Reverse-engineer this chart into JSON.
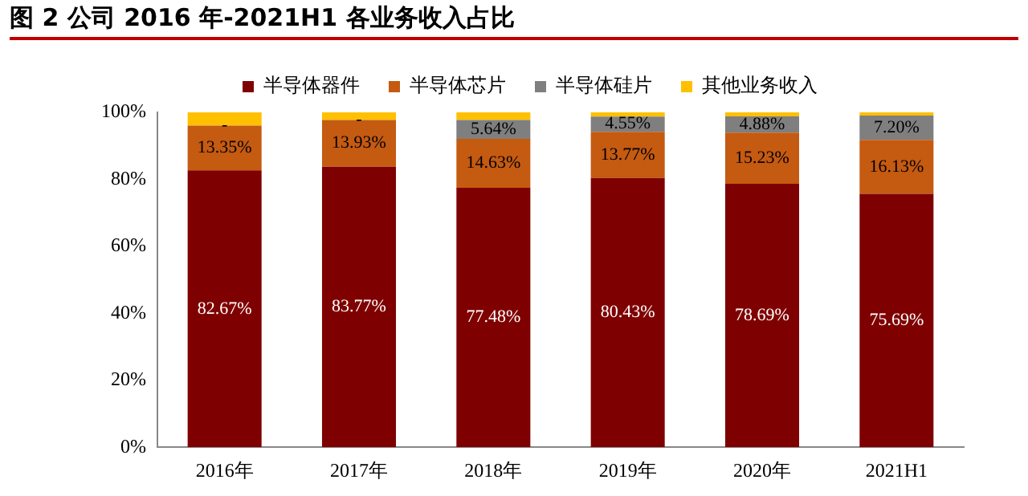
{
  "chart_data": {
    "type": "bar",
    "stacked": true,
    "title": "图 2 公司 2016 年-2021H1 各业务收入占比",
    "categories": [
      "2016年",
      "2017年",
      "2018年",
      "2019年",
      "2020年",
      "2021H1"
    ],
    "series": [
      {
        "name": "半导体器件",
        "color": "#7f0000",
        "values": [
          82.67,
          83.77,
          77.48,
          80.43,
          78.69,
          75.69
        ],
        "value_labels": [
          "82.67%",
          "83.77%",
          "77.48%",
          "80.43%",
          "78.69%",
          "75.69%"
        ]
      },
      {
        "name": "半导体芯片",
        "color": "#c55a11",
        "values": [
          13.35,
          13.93,
          14.63,
          13.77,
          15.23,
          16.13
        ],
        "value_labels": [
          "13.35%",
          "13.93%",
          "14.63%",
          "13.77%",
          "15.23%",
          "16.13%"
        ]
      },
      {
        "name": "半导体硅片",
        "color": "#7f7f7f",
        "values": [
          0,
          0,
          5.64,
          4.55,
          4.88,
          7.2
        ],
        "value_labels": [
          "-",
          "-",
          "5.64%",
          "4.55%",
          "4.88%",
          "7.20%"
        ]
      },
      {
        "name": "其他业务收入",
        "color": "#ffc000",
        "values": [
          3.98,
          2.3,
          2.25,
          1.25,
          1.2,
          0.98
        ],
        "value_labels": [
          null,
          null,
          null,
          null,
          null,
          null
        ]
      }
    ],
    "ylim": [
      0,
      100
    ],
    "yticks": [
      {
        "value": 0,
        "label": "0%"
      },
      {
        "value": 20,
        "label": "20%"
      },
      {
        "value": 40,
        "label": "40%"
      },
      {
        "value": 60,
        "label": "60%"
      },
      {
        "value": 80,
        "label": "80%"
      },
      {
        "value": 100,
        "label": "100%"
      }
    ],
    "grid": false,
    "legend": "top"
  }
}
